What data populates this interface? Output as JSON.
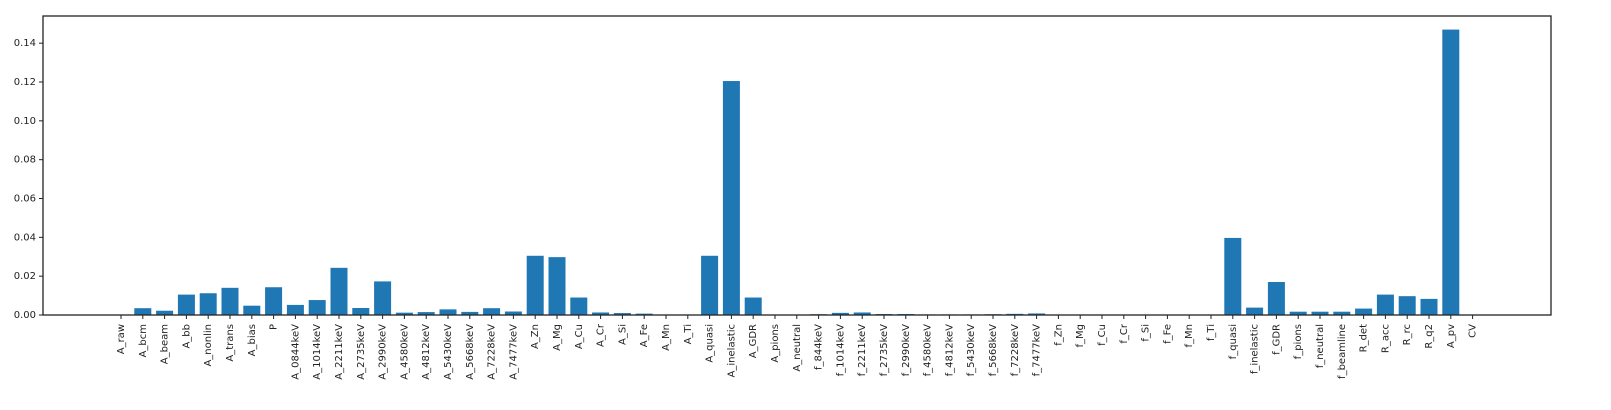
{
  "chart_data": {
    "type": "bar",
    "title": "",
    "xlabel": "",
    "ylabel": "",
    "ylim": [
      0,
      0.154
    ],
    "yticks": [
      "0.00",
      "0.02",
      "0.04",
      "0.06",
      "0.08",
      "0.10",
      "0.12",
      "0.14"
    ],
    "bar_color": "#1f77b4",
    "grid": false,
    "legend": "none",
    "categories": [
      "A_raw",
      "A_bcm",
      "A_beam",
      "A_bb",
      "A_nonlin",
      "A_trans",
      "A_bias",
      "P",
      "A_0844keV",
      "A_1014keV",
      "A_2211keV",
      "A_2735keV",
      "A_2990keV",
      "A_4580keV",
      "A_4812keV",
      "A_5430keV",
      "A_5668keV",
      "A_7228keV",
      "A_7477keV",
      "A_Zn",
      "A_Mg",
      "A_Cu",
      "A_Cr",
      "A_Si",
      "A_Fe",
      "A_Mn",
      "A_Ti",
      "A_quasi",
      "A_inelastic",
      "A_GDR",
      "A_pions",
      "A_neutral",
      "f_844keV",
      "f_1014keV",
      "f_2211keV",
      "f_2735keV",
      "f_2990keV",
      "f_4580keV",
      "f_4812keV",
      "f_5430keV",
      "f_5668keV",
      "f_7228keV",
      "f_7477keV",
      "f_Zn",
      "f_Mg",
      "f_Cu",
      "f_Cr",
      "f_Si",
      "f_Fe",
      "f_Mn",
      "f_Ti",
      "f_quasi",
      "f_inelastic",
      "f_GDR",
      "f_pions",
      "f_neutral",
      "f_beamline",
      "R_det",
      "R_acc",
      "R_rc",
      "R_q2",
      "A_pv",
      "CV"
    ],
    "values": [
      0.0,
      0.0035,
      0.0022,
      0.0105,
      0.0112,
      0.014,
      0.0048,
      0.0143,
      0.0052,
      0.0077,
      0.0243,
      0.0036,
      0.0173,
      0.0012,
      0.0015,
      0.0029,
      0.0016,
      0.0035,
      0.0018,
      0.0305,
      0.0298,
      0.009,
      0.0013,
      0.001,
      0.0007,
      0.0002,
      0.0001,
      0.0305,
      0.1205,
      0.009,
      0.0002,
      0.0002,
      0.0004,
      0.0011,
      0.0013,
      0.0005,
      0.0005,
      0.0003,
      0.0003,
      0.0003,
      0.0004,
      0.0006,
      0.0008,
      0.0002,
      0.0002,
      0.0002,
      0.0002,
      0.0002,
      0.0001,
      0.0001,
      0.0001,
      0.0397,
      0.0038,
      0.017,
      0.0017,
      0.0017,
      0.0017,
      0.0033,
      0.0105,
      0.0097,
      0.0083,
      0.147,
      0.0
    ]
  }
}
